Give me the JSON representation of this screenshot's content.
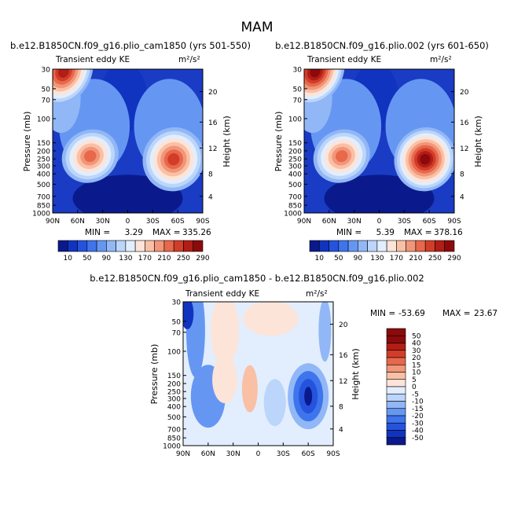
{
  "page_title": "MAM",
  "chart_data": [
    {
      "type": "heatmap",
      "title": "b.e12.B1850CN.f09_g16.plio_cam1850 (yrs 501-550)",
      "variable": "Transient eddy KE",
      "units": "m²/s²",
      "ylabel": "Pressure (mb)",
      "y2label": "Height (km)",
      "x_ticks": [
        "90N",
        "60N",
        "30N",
        "0",
        "30S",
        "60S",
        "90S"
      ],
      "y_ticks": [
        "30",
        "50",
        "70",
        "100",
        "150",
        "200",
        "250",
        "300",
        "400",
        "500",
        "700",
        "850",
        "1000"
      ],
      "y2_ticks": [
        "20",
        "16",
        "12",
        "8",
        "4"
      ],
      "stats": {
        "min_label": "MIN =",
        "min": "3.29",
        "max_label": "MAX =",
        "max": "335.26"
      },
      "colorbar_levels": [
        "10",
        "50",
        "90",
        "130",
        "170",
        "210",
        "250",
        "290"
      ],
      "features": [
        {
          "lat": 75,
          "p": 30,
          "value": 330
        },
        {
          "lat": 45,
          "p": 250,
          "value": 270
        },
        {
          "lat": -55,
          "p": 270,
          "value": 300
        }
      ]
    },
    {
      "type": "heatmap",
      "title": "b.e12.B1850CN.f09_g16.plio.002 (yrs 601-650)",
      "variable": "Transient eddy KE",
      "units": "m²/s²",
      "ylabel": "Pressure (mb)",
      "y2label": "Height (km)",
      "x_ticks": [
        "90N",
        "60N",
        "30N",
        "0",
        "30S",
        "60S",
        "90S"
      ],
      "y_ticks": [
        "30",
        "50",
        "70",
        "100",
        "150",
        "200",
        "250",
        "300",
        "400",
        "500",
        "700",
        "850",
        "1000"
      ],
      "y2_ticks": [
        "20",
        "16",
        "12",
        "8",
        "4"
      ],
      "stats": {
        "min_label": "MIN =",
        "min": "5.39",
        "max_label": "MAX =",
        "max": "378.16"
      },
      "colorbar_levels": [
        "10",
        "50",
        "90",
        "130",
        "170",
        "210",
        "250",
        "290"
      ],
      "features": [
        {
          "lat": 75,
          "p": 30,
          "value": 370
        },
        {
          "lat": 45,
          "p": 250,
          "value": 280
        },
        {
          "lat": -55,
          "p": 270,
          "value": 340
        }
      ]
    },
    {
      "type": "heatmap",
      "title": "b.e12.B1850CN.f09_g16.plio_cam1850 - b.e12.B1850CN.f09_g16.plio.002",
      "variable": "Transient eddy KE",
      "units": "m²/s²",
      "ylabel": "Pressure (mb)",
      "y2label": "Height (km)",
      "x_ticks": [
        "90N",
        "60N",
        "30N",
        "0",
        "30S",
        "60S",
        "90S"
      ],
      "y_ticks": [
        "30",
        "50",
        "70",
        "100",
        "150",
        "200",
        "250",
        "300",
        "400",
        "500",
        "700",
        "850",
        "1000"
      ],
      "y2_ticks": [
        "20",
        "16",
        "12",
        "8",
        "4"
      ],
      "stats": {
        "min_label": "MIN =",
        "min": "-53.69",
        "max_label": "MAX =",
        "max": "23.67"
      },
      "colorbar_levels": [
        "50",
        "40",
        "30",
        "20",
        "15",
        "10",
        "5",
        "0",
        "-5",
        "-10",
        "-15",
        "-20",
        "-30",
        "-40",
        "-50"
      ],
      "features": [
        {
          "lat": -60,
          "p": 300,
          "value": -50
        },
        {
          "lat": 10,
          "p": 250,
          "value": 10
        },
        {
          "lat": 40,
          "p": 60,
          "value": 8
        }
      ]
    }
  ],
  "colors": {
    "ke_scale": [
      "#0a1a8c",
      "#1034c0",
      "#2553de",
      "#3e74ec",
      "#6597f2",
      "#91b7f6",
      "#bcd5fa",
      "#e2eefd",
      "#fde4d8",
      "#f9c0a6",
      "#f29578",
      "#e7684b",
      "#d23d2a",
      "#b21d16",
      "#8c0a0c"
    ],
    "diff_scale": [
      "#8c0a0c",
      "#b21d16",
      "#d23d2a",
      "#e7684b",
      "#f29578",
      "#f9c0a6",
      "#fde4d8",
      "#e2eefd",
      "#bcd5fa",
      "#91b7f6",
      "#6597f2",
      "#3e74ec",
      "#2553de",
      "#1034c0",
      "#0a1a8c"
    ]
  }
}
